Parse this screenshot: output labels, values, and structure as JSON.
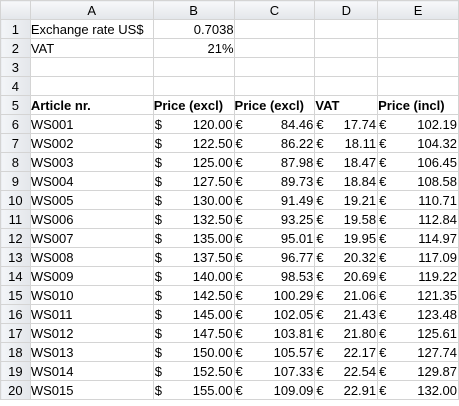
{
  "columns": [
    "A",
    "B",
    "C",
    "D",
    "E"
  ],
  "rows": [
    {
      "row": "1",
      "cells": [
        {
          "text": "Exchange rate US$"
        },
        {
          "val": "0.7038"
        },
        {},
        {},
        {}
      ]
    },
    {
      "row": "2",
      "cells": [
        {
          "text": "VAT"
        },
        {
          "val": "21%"
        },
        {},
        {},
        {}
      ]
    },
    {
      "row": "3",
      "cells": [
        {},
        {},
        {},
        {},
        {}
      ]
    },
    {
      "row": "4",
      "cells": [
        {},
        {},
        {},
        {},
        {}
      ]
    },
    {
      "row": "5",
      "cells": [
        {
          "text": "Article nr.",
          "bold": true
        },
        {
          "text": "Price (excl)",
          "bold": true
        },
        {
          "text": "Price (excl)",
          "bold": true
        },
        {
          "text": "VAT",
          "bold": true
        },
        {
          "text": "Price (incl)",
          "bold": true
        }
      ]
    },
    {
      "row": "6",
      "cells": [
        {
          "text": "WS001"
        },
        {
          "sym": "$",
          "val": "120.00"
        },
        {
          "sym": "€",
          "val": "84.46"
        },
        {
          "sym": "€",
          "val": "17.74"
        },
        {
          "sym": "€",
          "val": "102.19"
        }
      ]
    },
    {
      "row": "7",
      "cells": [
        {
          "text": "WS002"
        },
        {
          "sym": "$",
          "val": "122.50"
        },
        {
          "sym": "€",
          "val": "86.22"
        },
        {
          "sym": "€",
          "val": "18.11"
        },
        {
          "sym": "€",
          "val": "104.32"
        }
      ]
    },
    {
      "row": "8",
      "cells": [
        {
          "text": "WS003"
        },
        {
          "sym": "$",
          "val": "125.00"
        },
        {
          "sym": "€",
          "val": "87.98"
        },
        {
          "sym": "€",
          "val": "18.47"
        },
        {
          "sym": "€",
          "val": "106.45"
        }
      ]
    },
    {
      "row": "9",
      "cells": [
        {
          "text": "WS004"
        },
        {
          "sym": "$",
          "val": "127.50"
        },
        {
          "sym": "€",
          "val": "89.73"
        },
        {
          "sym": "€",
          "val": "18.84"
        },
        {
          "sym": "€",
          "val": "108.58"
        }
      ]
    },
    {
      "row": "10",
      "cells": [
        {
          "text": "WS005"
        },
        {
          "sym": "$",
          "val": "130.00"
        },
        {
          "sym": "€",
          "val": "91.49"
        },
        {
          "sym": "€",
          "val": "19.21"
        },
        {
          "sym": "€",
          "val": "110.71"
        }
      ]
    },
    {
      "row": "11",
      "cells": [
        {
          "text": "WS006"
        },
        {
          "sym": "$",
          "val": "132.50"
        },
        {
          "sym": "€",
          "val": "93.25"
        },
        {
          "sym": "€",
          "val": "19.58"
        },
        {
          "sym": "€",
          "val": "112.84"
        }
      ]
    },
    {
      "row": "12",
      "cells": [
        {
          "text": "WS007"
        },
        {
          "sym": "$",
          "val": "135.00"
        },
        {
          "sym": "€",
          "val": "95.01"
        },
        {
          "sym": "€",
          "val": "19.95"
        },
        {
          "sym": "€",
          "val": "114.97"
        }
      ]
    },
    {
      "row": "13",
      "cells": [
        {
          "text": "WS008"
        },
        {
          "sym": "$",
          "val": "137.50"
        },
        {
          "sym": "€",
          "val": "96.77"
        },
        {
          "sym": "€",
          "val": "20.32"
        },
        {
          "sym": "€",
          "val": "117.09"
        }
      ]
    },
    {
      "row": "14",
      "cells": [
        {
          "text": "WS009"
        },
        {
          "sym": "$",
          "val": "140.00"
        },
        {
          "sym": "€",
          "val": "98.53"
        },
        {
          "sym": "€",
          "val": "20.69"
        },
        {
          "sym": "€",
          "val": "119.22"
        }
      ]
    },
    {
      "row": "15",
      "cells": [
        {
          "text": "WS010"
        },
        {
          "sym": "$",
          "val": "142.50"
        },
        {
          "sym": "€",
          "val": "100.29"
        },
        {
          "sym": "€",
          "val": "21.06"
        },
        {
          "sym": "€",
          "val": "121.35"
        }
      ]
    },
    {
      "row": "16",
      "cells": [
        {
          "text": "WS011"
        },
        {
          "sym": "$",
          "val": "145.00"
        },
        {
          "sym": "€",
          "val": "102.05"
        },
        {
          "sym": "€",
          "val": "21.43"
        },
        {
          "sym": "€",
          "val": "123.48"
        }
      ]
    },
    {
      "row": "17",
      "cells": [
        {
          "text": "WS012"
        },
        {
          "sym": "$",
          "val": "147.50"
        },
        {
          "sym": "€",
          "val": "103.81"
        },
        {
          "sym": "€",
          "val": "21.80"
        },
        {
          "sym": "€",
          "val": "125.61"
        }
      ]
    },
    {
      "row": "18",
      "cells": [
        {
          "text": "WS013"
        },
        {
          "sym": "$",
          "val": "150.00"
        },
        {
          "sym": "€",
          "val": "105.57"
        },
        {
          "sym": "€",
          "val": "22.17"
        },
        {
          "sym": "€",
          "val": "127.74"
        }
      ]
    },
    {
      "row": "19",
      "cells": [
        {
          "text": "WS014"
        },
        {
          "sym": "$",
          "val": "152.50"
        },
        {
          "sym": "€",
          "val": "107.33"
        },
        {
          "sym": "€",
          "val": "22.54"
        },
        {
          "sym": "€",
          "val": "129.87"
        }
      ]
    },
    {
      "row": "20",
      "cells": [
        {
          "text": "WS015"
        },
        {
          "sym": "$",
          "val": "155.00"
        },
        {
          "sym": "€",
          "val": "109.09"
        },
        {
          "sym": "€",
          "val": "22.91"
        },
        {
          "sym": "€",
          "val": "132.00"
        }
      ]
    }
  ]
}
